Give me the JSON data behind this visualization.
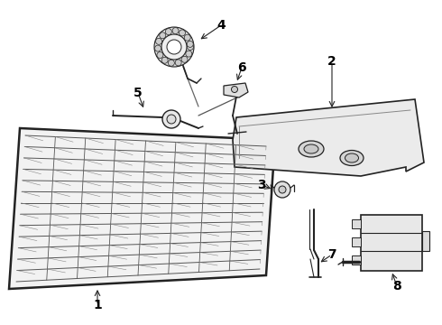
{
  "background_color": "#ffffff",
  "line_color": "#222222",
  "label_color": "#000000",
  "figsize": [
    4.9,
    3.6
  ],
  "dpi": 100
}
